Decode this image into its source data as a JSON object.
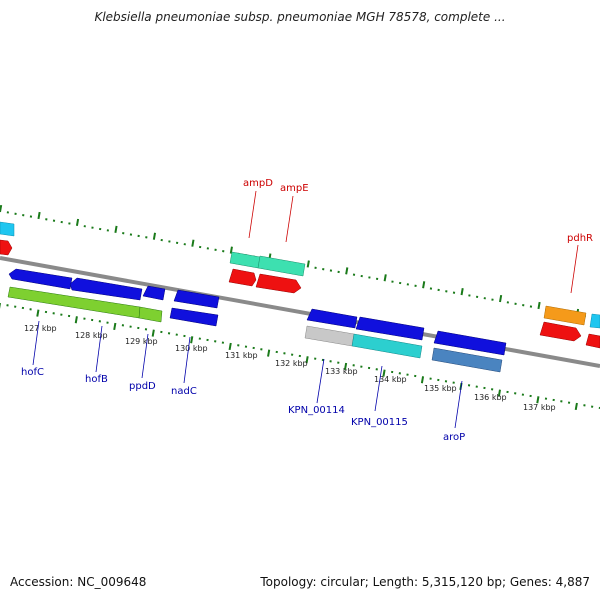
{
  "title": "Klebsiella pneumoniae subsp. pneumoniae MGH 78578, complete ...",
  "footer": {
    "accession": "Accession: NC_009648",
    "summary": "Topology: circular; Length: 5,315,120 bp; Genes: 4,887"
  },
  "colors": {
    "label_top": "#cc0000",
    "label_bottom": "#0000aa",
    "tick": "#1a7a1a",
    "backbone": "#808080"
  },
  "scale_labels": [
    "127 kbp",
    "128 kbp",
    "129 kbp",
    "130 kbp",
    "131 kbp",
    "132 kbp",
    "133 kbp",
    "134 kbp",
    "135 kbp",
    "136 kbp",
    "137 kbp"
  ],
  "gene_labels_top": [
    "ampD",
    "ampE",
    "pdhR"
  ],
  "gene_labels_bottom": [
    "hofC",
    "hofB",
    "ppdD",
    "nadC",
    "KPN_00114",
    "KPN_00115",
    "aroP"
  ]
}
